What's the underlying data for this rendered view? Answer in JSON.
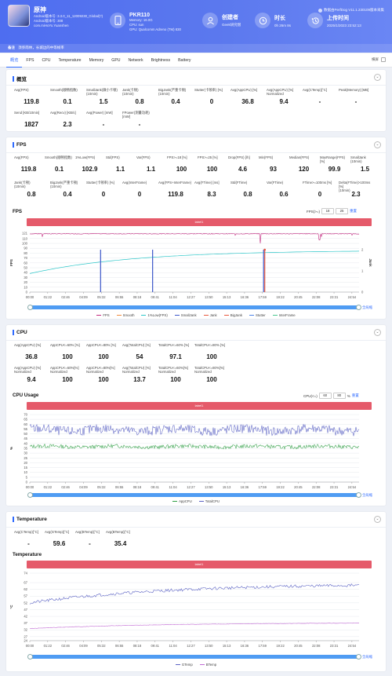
{
  "header": {
    "version": "数据由PerfDog V11.1.230109版本采集",
    "app": {
      "name": "原神",
      "lines": [
        "Android版本号: 3.3.0_11_12009230_Global(?)",
        "Android版本号: 308",
        "com.miHoYo.Yuanshen"
      ]
    },
    "device": {
      "name": "PKR110",
      "lines": [
        "Memory: 16.0G",
        "CPU: sun",
        "GPU: Qualcomm Adreno (TM) 830"
      ]
    },
    "creator": {
      "label": "创建者",
      "value": "Geek研究僧"
    },
    "duration": {
      "label": "时长",
      "value": "0h 26m 8s"
    },
    "upload": {
      "label": "上传时间",
      "value": "2025/1/2023 23:52:13"
    },
    "note_label": "备注",
    "note_text": "须弥雨林，长城边的中等帧率"
  },
  "tabs": [
    "概览",
    "FPS",
    "CPU",
    "Temperature",
    "Memory",
    "GPU",
    "Network",
    "Brightness",
    "Battery"
  ],
  "tabs_right_label": "横屏",
  "overview": {
    "title": "概览",
    "row1": [
      {
        "label": "Avg(FPS)",
        "value": "119.8"
      },
      {
        "label": "Smooth(顺畅指数)",
        "value": "0.1"
      },
      {
        "label": "SmallJank(微小卡顿)\n(10min)",
        "value": "1.5"
      },
      {
        "label": "Jank(卡顿)\n(10min)",
        "value": "0.8"
      },
      {
        "label": "BigJank(严重卡顿)\n(10min)",
        "value": "0.4"
      },
      {
        "label": "Stutter(卡顿率) [%]",
        "value": "0"
      },
      {
        "label": "Avg(AppCPU) [%]",
        "value": "36.8"
      },
      {
        "label": "Avg(AppCPU) [%]\nNormalized",
        "value": "9.4"
      },
      {
        "label": "Avg(CTemp)[°C]",
        "value": "-"
      },
      {
        "label": "Peak(Memory) [MB]",
        "value": "-"
      }
    ],
    "row2": [
      {
        "label": "Send [KB/10min]",
        "value": "1827"
      },
      {
        "label": "Avg(Recv) [KB/s]",
        "value": "2.3"
      },
      {
        "label": "Avg(Power) [mW]",
        "value": "-"
      },
      {
        "label": "FPower(测量功耗) [mW]",
        "value": "-"
      }
    ]
  },
  "fps": {
    "title": "FPS",
    "row1": [
      {
        "label": "Avg(FPS)",
        "value": "119.8"
      },
      {
        "label": "Smooth(顺畅指数)",
        "value": "0.1"
      },
      {
        "label": "1%Low(FPS)",
        "value": "102.9"
      },
      {
        "label": "Std(FPS)",
        "value": "1.1"
      },
      {
        "label": "Var(FPS)",
        "value": "1.1"
      },
      {
        "label": "FPS>=18 [%]",
        "value": "100"
      },
      {
        "label": "FPS>=25 [%]",
        "value": "100"
      },
      {
        "label": "Drop(FPS) [/h]",
        "value": "4.6"
      },
      {
        "label": "Min(FPS)",
        "value": "93"
      },
      {
        "label": "Median(FPS)",
        "value": "120"
      },
      {
        "label": "MaxRange(FPS)[%]",
        "value": "99.9"
      },
      {
        "label": "SmallJank\n(10min)",
        "value": "1.5"
      }
    ],
    "row2": [
      {
        "label": "Jank(卡顿)\n(10min)",
        "value": "0.8"
      },
      {
        "label": "BigJank(严重卡顿)\n(10min)",
        "value": "0.4"
      },
      {
        "label": "Stutter(卡顿率) [%]",
        "value": "0"
      },
      {
        "label": "Avg(InterFrame)",
        "value": "0"
      },
      {
        "label": "Avg(FPS+InterFrame)",
        "value": "119.8"
      },
      {
        "label": "Avg(FTime) [ms]",
        "value": "8.3"
      },
      {
        "label": "Std(FTime)",
        "value": "0.8"
      },
      {
        "label": "Var(FTime)",
        "value": "0.6"
      },
      {
        "label": "FTime>=100ms [%]",
        "value": "0"
      },
      {
        "label": "Delta(FTime)>100ms [%]\n(10min)",
        "value": "2.3"
      }
    ],
    "chart_title": "FPS",
    "control_label": "FPS(>=)",
    "control_values": [
      "18",
      "25"
    ],
    "control_link": "重置",
    "banner": "label1",
    "reset_link": "全局缩"
  },
  "cpu": {
    "title": "CPU",
    "row1": [
      {
        "label": "Avg(AppCPU) [%]",
        "value": "36.8"
      },
      {
        "label": "AppCPU<=60% [%]",
        "value": "100"
      },
      {
        "label": "AppCPU<=80% [%]",
        "value": "100"
      },
      {
        "label": "Avg(TotalCPU) [%]",
        "value": "54"
      },
      {
        "label": "TotalCPU<=60% [%]",
        "value": "97.1"
      },
      {
        "label": "TotalCPU<=80% [%]",
        "value": "100"
      }
    ],
    "row2": [
      {
        "label": "Avg(AppCPU) [%]\nNormalized",
        "value": "9.4"
      },
      {
        "label": "AppCPU<=60%[%]\nNormalized",
        "value": "100"
      },
      {
        "label": "AppCPU<=80%[%]\nNormalized",
        "value": "100"
      },
      {
        "label": "Avg(TotalCPU) [%]\nNormalized",
        "value": "13.7"
      },
      {
        "label": "TotalCPU<=60%[%]\nNormalized",
        "value": "100"
      },
      {
        "label": "TotalCPU<=80%[%]\nNormalized",
        "value": "100"
      }
    ],
    "chart_title": "CPU Usage",
    "control_label": "CPU(<=)",
    "control_values": [
      "60",
      "80"
    ],
    "control_unit": "%",
    "control_link": "重置",
    "banner": "label1",
    "reset_link": "全局缩"
  },
  "temperature": {
    "title": "Temperature",
    "row1": [
      {
        "label": "Avg(CTemp)[°C]",
        "value": "-"
      },
      {
        "label": "Avg(GTemp)[°C]",
        "value": "59.6"
      },
      {
        "label": "Avg(BTemp)[°C]",
        "value": "-"
      },
      {
        "label": "Avg(BTemp)[°C]",
        "value": "35.4"
      }
    ],
    "chart_title": "Temperature",
    "banner": "label1",
    "reset_link": "全局缩"
  },
  "time_ticks": [
    "00:00",
    "01:22",
    "02:46",
    "04:09",
    "05:32",
    "06:55",
    "08:18",
    "09:41",
    "11:04",
    "12:27",
    "13:50",
    "15:13",
    "16:36",
    "17:59",
    "19:22",
    "20:45",
    "22:08",
    "23:31",
    "24:54"
  ],
  "chart_data": [
    {
      "type": "line",
      "title": "FPS",
      "ylabel": "FPS",
      "y2label": "Jank",
      "ylim": [
        0,
        121
      ],
      "yticks": [
        0,
        10,
        20,
        30,
        40,
        50,
        60,
        70,
        80,
        90,
        100,
        110,
        121
      ],
      "y2ticks": [
        0,
        1,
        2
      ],
      "x_range": [
        "00:00",
        "25:46"
      ],
      "series": [
        {
          "name": "FPS",
          "color": "#c1277e",
          "level": 119.8,
          "dips": [
            [
              0.7,
              100
            ],
            [
              0.88,
              107
            ]
          ]
        },
        {
          "name": "Smooth",
          "color": "#f08a3c"
        },
        {
          "name": "1%Low(FPS)",
          "color": "#2ec7c9",
          "start": 38,
          "end": 84
        },
        {
          "name": "SmallJank",
          "color": "#3b56c9",
          "spikes": [
            0.215,
            0.373,
            0.71
          ]
        },
        {
          "name": "Jank",
          "color": "#e8573d",
          "spikes": [
            0.71
          ]
        },
        {
          "name": "BigJank",
          "color": "#e8573d"
        },
        {
          "name": "Stutter",
          "color": "#4d82e6"
        },
        {
          "name": "InterFrame",
          "color": "#48c78f"
        }
      ]
    },
    {
      "type": "line",
      "title": "CPU Usage",
      "ylabel": "%",
      "ylim": [
        0,
        70
      ],
      "yticks": [
        0,
        5,
        10,
        15,
        20,
        25,
        30,
        35,
        40,
        45,
        50,
        55,
        60,
        65,
        70
      ],
      "series": [
        {
          "name": "AppCPU",
          "color": "#2f9e44",
          "mean": 36.8,
          "amp": 2
        },
        {
          "name": "TotalCPU",
          "color": "#5c63c4",
          "mean": 54,
          "amp": 5
        }
      ]
    },
    {
      "type": "line",
      "title": "Temperature",
      "ylabel": "°C",
      "ylim": [
        24,
        74
      ],
      "yticks": [
        24,
        27,
        32,
        37,
        42,
        47,
        52,
        57,
        62,
        67,
        74
      ],
      "series": [
        {
          "name": "GTemp",
          "color": "#5c63c4",
          "start": 52,
          "end": 65
        },
        {
          "name": "BTemp",
          "color": "#c16bd4",
          "start": 33,
          "end": 37
        }
      ]
    }
  ]
}
